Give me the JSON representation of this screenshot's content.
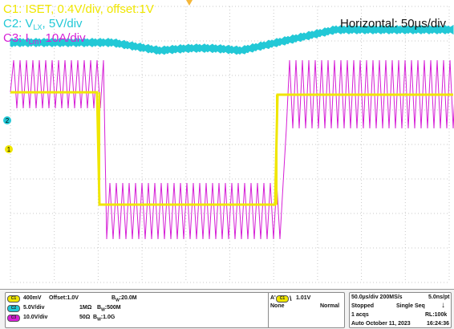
{
  "colors": {
    "ch1": "#f0e600",
    "ch2": "#22c8d6",
    "ch3": "#d61fd6",
    "trigger": "#f5b73a",
    "grid": "#c8c8c8"
  },
  "annotations": {
    "c1": "C1: ISET, 0.4V/div, offset:1V",
    "c2_prefix": "C2: V",
    "c2_sub": "LX",
    "c2_suffix": ", 5V/div",
    "c3_prefix": "C3: I",
    "c3_sub": "Lm",
    "c3_suffix": ", 10A/div",
    "horizontal": "Horizontal: 50µs/div"
  },
  "markers": {
    "ch2": "2",
    "ch1": "1"
  },
  "channels": [
    {
      "badge": "C1",
      "scale": "400mV",
      "extra": "Offset:1.0V",
      "bw": "B",
      "bw_sub": "W",
      "bw_val": ":20.0M"
    },
    {
      "badge": "C2",
      "scale": "5.0V/div",
      "extra": "1MΩ",
      "bw": "B",
      "bw_sub": "W",
      "bw_val": ":500M"
    },
    {
      "badge": "C3",
      "scale": "10.0V/div",
      "extra": "50Ω",
      "bw": "B",
      "bw_sub": "W",
      "bw_val": ":1.0G"
    }
  ],
  "trigger": {
    "label": "A'",
    "source": "C1",
    "slope": "\\",
    "level": "1.01V",
    "coupling": "None",
    "mode": "Normal"
  },
  "timebase": {
    "rate": "50.0µs/div 200MS/s",
    "resolution": "5.0ns/pt",
    "state": "Stopped",
    "seq": "Single Seq",
    "acqs": "1 acqs",
    "rl": "RL:100k",
    "auto": "Auto",
    "date": "October 11, 2023",
    "time": "16:24:36"
  }
}
